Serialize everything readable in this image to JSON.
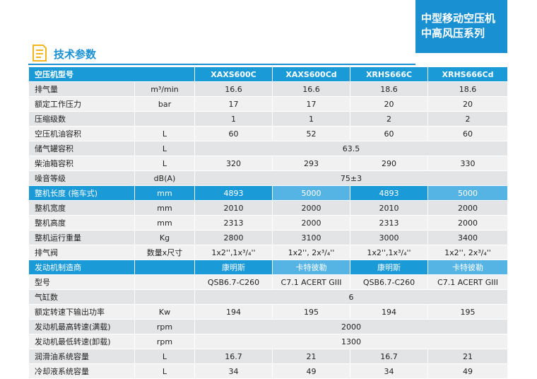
{
  "header": {
    "title": "技术参数",
    "badge": [
      "中型移动空压机",
      "中高风压系列"
    ]
  },
  "table": {
    "columns": [
      "空压机型号",
      "XAXS600C",
      "XAXS600Cd",
      "XRHS666C",
      "XRHS666Cd"
    ],
    "rows": [
      {
        "label": "排气量",
        "unit": "m³/min",
        "values": [
          "16.6",
          "16.6",
          "18.6",
          "18.6"
        ]
      },
      {
        "label": "额定工作压力",
        "unit": "bar",
        "values": [
          "17",
          "17",
          "20",
          "20"
        ]
      },
      {
        "label": "压缩级数",
        "values": [
          "1",
          "1",
          "2",
          "2"
        ]
      },
      {
        "label": "空压机油容积",
        "unit": "L",
        "values": [
          "60",
          "52",
          "60",
          "60"
        ]
      },
      {
        "label": "储气罐容积",
        "unit": "L",
        "values": [
          "63.5"
        ]
      },
      {
        "label": "柴油箱容积",
        "unit": "L",
        "values": [
          "320",
          "293",
          "290",
          "330"
        ]
      },
      {
        "label": "噪音等级",
        "unit": "dB(A)",
        "values": [
          "75±3"
        ]
      },
      {
        "label": "整机长度 (拖车式)",
        "unit": "mm",
        "values": [
          "4893",
          "5000",
          "4893",
          "5000"
        ],
        "highlight": true
      },
      {
        "label": "整机宽度",
        "unit": "mm",
        "values": [
          "2010",
          "2000",
          "2010",
          "2000"
        ]
      },
      {
        "label": "整机高度",
        "unit": "mm",
        "values": [
          "2313",
          "2000",
          "2313",
          "2000"
        ]
      },
      {
        "label": "整机运行重量",
        "unit": "Kg",
        "values": [
          "2800",
          "3100",
          "3000",
          "3400"
        ]
      },
      {
        "label": "排气阀",
        "unit": "数量x尺寸",
        "values": [
          "1x2'',1x³/₄''",
          "1x2'', 2x³/₄''",
          "1x2'',1x³/₄''",
          "1x2'', 2x³/₄''"
        ]
      },
      {
        "label": "发动机制造商",
        "values": [
          "康明斯",
          "卡特彼勒",
          "康明斯",
          "卡特彼勒"
        ],
        "highlight": true
      },
      {
        "label": "型号",
        "values": [
          "QSB6.7-C260",
          "C7.1 ACERT GIII",
          "QSB6.7-C260",
          "C7.1 ACERT GIII"
        ]
      },
      {
        "label": "气缸数",
        "values": [
          "6"
        ]
      },
      {
        "label": "额定转速下输出功率",
        "unit": "Kw",
        "values": [
          "194",
          "195",
          "194",
          "195"
        ]
      },
      {
        "label": "发动机最高转速(满载)",
        "unit": "rpm",
        "values": [
          "2000"
        ]
      },
      {
        "label": "发动机最低转速(卸载)",
        "unit": "rpm",
        "values": [
          "1300"
        ]
      },
      {
        "label": "润滑油系统容量",
        "unit": "L",
        "values": [
          "16.7",
          "21",
          "16.7",
          "21"
        ]
      },
      {
        "label": "冷却液系统容量",
        "unit": "L",
        "values": [
          "34",
          "49",
          "34",
          "49"
        ]
      }
    ]
  }
}
